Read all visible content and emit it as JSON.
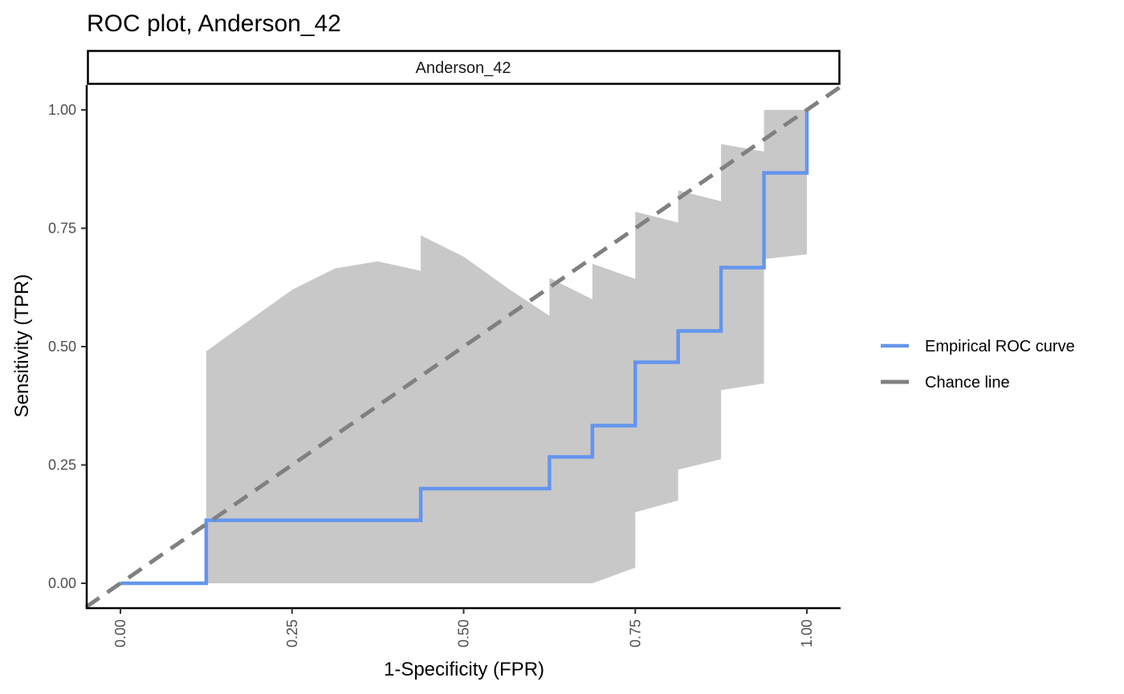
{
  "chart_data": {
    "type": "line",
    "title": "ROC plot, Anderson_42",
    "facet_label": "Anderson_42",
    "xlabel": "1-Specificity (FPR)",
    "ylabel": "Sensitivity (TPR)",
    "xlim": [
      -0.05,
      1.05
    ],
    "ylim": [
      -0.05,
      1.05
    ],
    "x_ticks": [
      0,
      0.25,
      0.5,
      0.75,
      1
    ],
    "x_tick_labels": [
      "0.00",
      "0.25",
      "0.50",
      "0.75",
      "1.00"
    ],
    "y_ticks": [
      0,
      0.25,
      0.5,
      0.75,
      1
    ],
    "y_tick_labels": [
      "0.00",
      "0.25",
      "0.50",
      "0.75",
      "1.00"
    ],
    "grid": false,
    "legend_position": "right",
    "series": [
      {
        "name": "Empirical ROC curve",
        "kind": "step",
        "color": "#6495ED",
        "x": [
          0,
          0.125,
          0.125,
          0.4375,
          0.4375,
          0.625,
          0.625,
          0.6875,
          0.6875,
          0.75,
          0.75,
          0.8125,
          0.8125,
          0.875,
          0.875,
          0.9375,
          0.9375,
          1.0,
          1.0
        ],
        "y": [
          0,
          0,
          0.133,
          0.133,
          0.2,
          0.2,
          0.267,
          0.267,
          0.333,
          0.333,
          0.467,
          0.467,
          0.533,
          0.533,
          0.667,
          0.667,
          0.867,
          0.867,
          1.0
        ]
      },
      {
        "name": "Chance line",
        "kind": "dashed",
        "color": "#808080",
        "x": [
          -0.05,
          1.05
        ],
        "y": [
          -0.05,
          1.05
        ]
      }
    ],
    "confidence_band": {
      "color": "#C8C8C8",
      "x": [
        0.125,
        0.1875,
        0.25,
        0.3125,
        0.375,
        0.4375,
        0.4375,
        0.5,
        0.5625,
        0.625,
        0.625,
        0.6875,
        0.6875,
        0.75,
        0.75,
        0.8125,
        0.8125,
        0.875,
        0.875,
        0.9375,
        0.9375,
        1.0
      ],
      "upper": [
        0.49,
        0.555,
        0.62,
        0.665,
        0.68,
        0.66,
        0.735,
        0.69,
        0.625,
        0.565,
        0.645,
        0.6,
        0.675,
        0.643,
        0.785,
        0.762,
        0.83,
        0.807,
        0.928,
        0.912,
        1.0,
        1.0
      ],
      "lower": [
        0.0,
        0.0,
        0.0,
        0.0,
        0.0,
        0.0,
        0.0,
        0.0,
        0.0,
        0.0,
        0.0,
        0.0,
        0.0,
        0.033,
        0.15,
        0.175,
        0.24,
        0.262,
        0.408,
        0.422,
        0.685,
        0.695
      ]
    }
  }
}
